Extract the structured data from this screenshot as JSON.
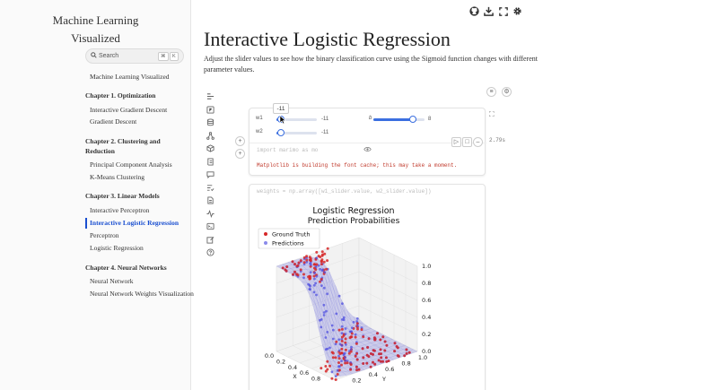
{
  "site": {
    "title_line1": "Machine Learning",
    "title_line2": "Visualized"
  },
  "search": {
    "label": "Search",
    "kbd1": "⌘",
    "kbd2": "K"
  },
  "nav": {
    "home": "Machine Learning Visualized",
    "ch1": "Chapter 1. Optimization",
    "ch1_items": [
      "Interactive Gradient Descent",
      "Gradient Descent"
    ],
    "ch2": "Chapter 2. Clustering and Reduction",
    "ch2_items": [
      "Principal Component Analysis",
      "K-Means Clustering"
    ],
    "ch3": "Chapter 3. Linear Models",
    "ch3_items": [
      "Interactive Perceptron",
      "Interactive Logistic Regression",
      "Perceptron",
      "Logistic Regression"
    ],
    "ch4": "Chapter 4. Neural Networks",
    "ch4_items": [
      "Neural Network",
      "Neural Network Weights Visualization"
    ]
  },
  "page": {
    "title": "Interactive Logistic Regression",
    "description": "Adjust the slider values to see how the binary classification curve using the Sigmoid function changes with different parameter values."
  },
  "sliders": {
    "w1": {
      "label": "w1",
      "value": "-11",
      "fraction": 0.0
    },
    "w2": {
      "label": "w2",
      "value": "-11",
      "fraction": 0.0
    },
    "b": {
      "label": "b",
      "value": "8",
      "fraction": 0.92
    },
    "tooltip": "-11"
  },
  "cell1": {
    "code": "import marimo as mo",
    "message": "Matplotlib is building the font cache; this may take a moment.",
    "runtime": "2.79s"
  },
  "cell2": {
    "code": "weights = np.array([w1_slider.value, w2_slider.value])"
  },
  "colors": {
    "accent": "#1a4fd0",
    "red": "#d62728",
    "blue": "#3b3bdc"
  },
  "chart_data": {
    "type": "scatter",
    "title": "Logistic Regression",
    "subtitle": "Prediction Probabilities",
    "legend": [
      "Ground Truth",
      "Predictions"
    ],
    "legend_position": "top-left",
    "xlabel": "X",
    "ylabel": "Y",
    "x_ticks": [
      "0.0",
      "0.2",
      "0.4",
      "0.6",
      "0.8"
    ],
    "y_ticks": [
      "0.2",
      "0.4",
      "0.6",
      "0.8",
      "1.0"
    ],
    "z_ticks": [
      "0.0",
      "0.2",
      "0.4",
      "0.6",
      "0.8",
      "1.0"
    ],
    "xlim": [
      0,
      1
    ],
    "ylim": [
      0,
      1
    ],
    "zlim": [
      0,
      1
    ],
    "w1": -11,
    "w2": -11,
    "b": 8
  }
}
